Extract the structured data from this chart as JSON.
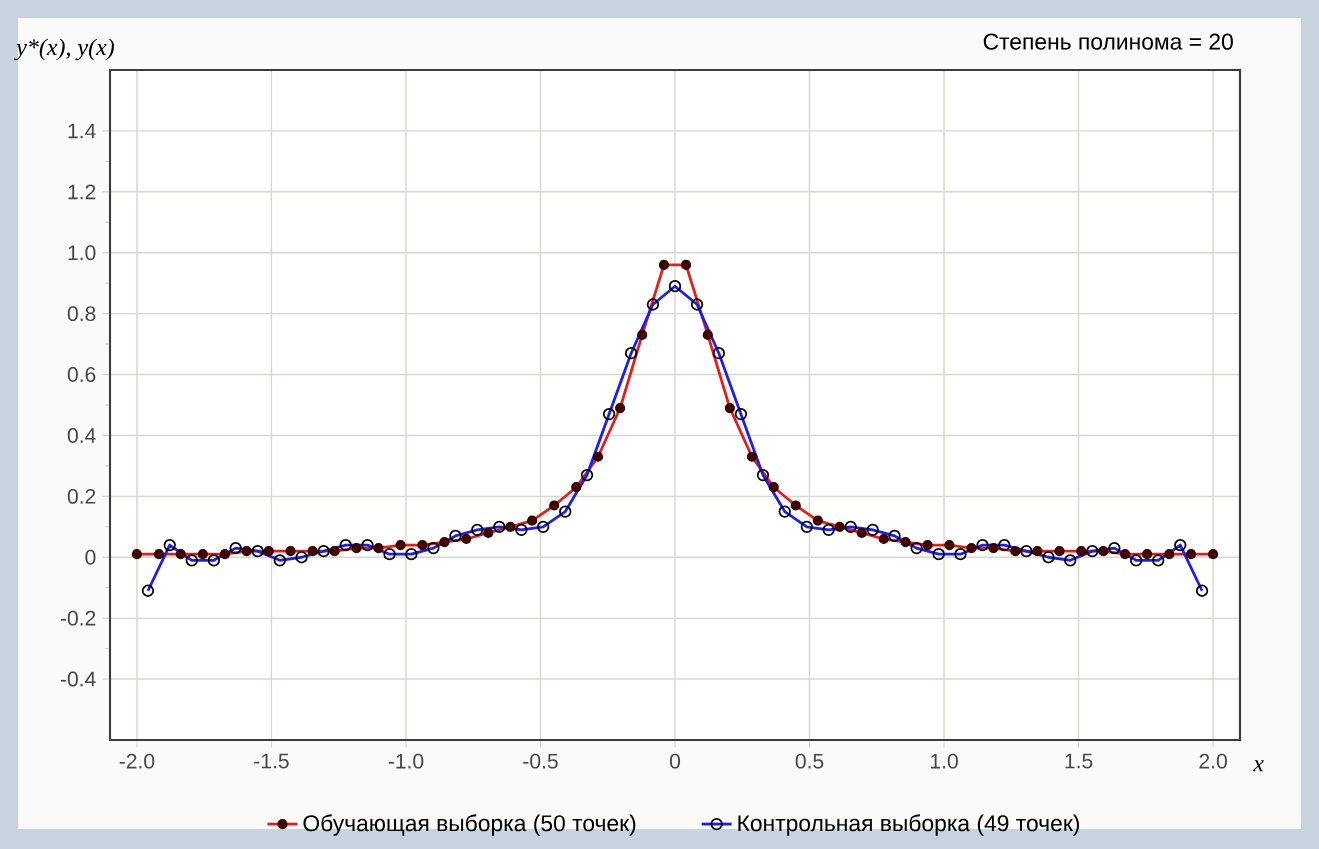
{
  "chart_data": {
    "type": "line",
    "title": "Степень полинома = 20",
    "xlabel": "x",
    "ylabel": "y*(x), y(x)",
    "xlim": [
      -2.1,
      2.1
    ],
    "ylim": [
      -0.6,
      1.6
    ],
    "xticks": [
      {
        "value": -2,
        "label": "-2.0"
      },
      -1.5,
      {
        "value": -1,
        "label": "-1.0"
      },
      -0.5,
      0,
      0.5,
      {
        "value": 1,
        "label": "1.0"
      },
      1.5,
      {
        "value": 2,
        "label": "2.0"
      }
    ],
    "yticks": [
      -0.4,
      -0.2,
      0,
      0.2,
      0.4,
      0.6,
      0.8,
      {
        "value": 1,
        "label": "1.0"
      },
      1.2,
      1.4
    ],
    "grid": true,
    "legend": "bottom",
    "marker": "circle",
    "line_style": "solid",
    "series": [
      {
        "name": "Обучающая выборка (50 точек)",
        "color": "#e02020",
        "x": [
          -2,
          -1.918,
          -1.837,
          -1.755,
          -1.673,
          -1.592,
          -1.51,
          -1.429,
          -1.347,
          -1.265,
          -1.184,
          -1.102,
          -1.02,
          -0.939,
          -0.857,
          -0.776,
          -0.694,
          -0.612,
          -0.531,
          -0.449,
          -0.367,
          -0.286,
          -0.204,
          -0.122,
          -0.041,
          0.041,
          0.122,
          0.204,
          0.286,
          0.367,
          0.449,
          0.531,
          0.612,
          0.694,
          0.776,
          0.857,
          0.939,
          1.02,
          1.102,
          1.184,
          1.265,
          1.347,
          1.429,
          1.51,
          1.592,
          1.673,
          1.755,
          1.837,
          1.918,
          2
        ],
        "values": [
          0.01,
          0.01,
          0.01,
          0.01,
          0.01,
          0.02,
          0.02,
          0.02,
          0.02,
          0.02,
          0.03,
          0.03,
          0.04,
          0.04,
          0.05,
          0.06,
          0.08,
          0.1,
          0.12,
          0.17,
          0.23,
          0.33,
          0.49,
          0.73,
          0.96,
          0.96,
          0.73,
          0.49,
          0.33,
          0.23,
          0.17,
          0.12,
          0.1,
          0.08,
          0.06,
          0.05,
          0.04,
          0.04,
          0.03,
          0.03,
          0.02,
          0.02,
          0.02,
          0.02,
          0.02,
          0.01,
          0.01,
          0.01,
          0.01,
          0.01
        ]
      },
      {
        "name": "Контрольная выборка (49 точек)",
        "color": "#2020e0",
        "x": [
          -1.959,
          -1.878,
          -1.796,
          -1.714,
          -1.633,
          -1.551,
          -1.469,
          -1.388,
          -1.306,
          -1.224,
          -1.143,
          -1.061,
          -0.98,
          -0.898,
          -0.816,
          -0.735,
          -0.653,
          -0.571,
          -0.49,
          -0.408,
          -0.327,
          -0.245,
          -0.163,
          -0.082,
          0,
          0.082,
          0.163,
          0.245,
          0.327,
          0.408,
          0.49,
          0.571,
          0.653,
          0.735,
          0.816,
          0.898,
          0.98,
          1.061,
          1.143,
          1.224,
          1.306,
          1.388,
          1.469,
          1.551,
          1.633,
          1.714,
          1.796,
          1.878,
          1.959
        ],
        "values": [
          -0.11,
          0.04,
          -0.01,
          -0.01,
          0.03,
          0.02,
          -0.01,
          0,
          0.02,
          0.04,
          0.04,
          0.01,
          0.01,
          0.03,
          0.07,
          0.09,
          0.1,
          0.09,
          0.1,
          0.15,
          0.27,
          0.47,
          0.67,
          0.83,
          0.89,
          0.83,
          0.67,
          0.47,
          0.27,
          0.15,
          0.1,
          0.09,
          0.1,
          0.09,
          0.07,
          0.03,
          0.01,
          0.01,
          0.04,
          0.04,
          0.02,
          0,
          -0.01,
          0.02,
          0.03,
          -0.01,
          -0.01,
          0.04,
          -0.11
        ]
      }
    ]
  }
}
